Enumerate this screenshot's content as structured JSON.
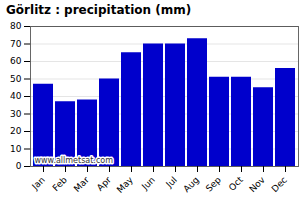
{
  "chart_data": {
    "type": "bar",
    "title": "Görlitz : precipitation (mm)",
    "categories": [
      "Jan",
      "Feb",
      "Mar",
      "Apr",
      "May",
      "Jun",
      "Jul",
      "Aug",
      "Sep",
      "Oct",
      "Nov",
      "Dec"
    ],
    "values": [
      47,
      37,
      38,
      50,
      65,
      70,
      70,
      73,
      51,
      51,
      45,
      56
    ],
    "color": "#0000CC",
    "ylim": [
      0,
      80
    ],
    "yticks": [
      0,
      10,
      20,
      30,
      40,
      50,
      60,
      70,
      80
    ],
    "grid": true,
    "annotations": [
      "www.allmetsat.com"
    ]
  }
}
